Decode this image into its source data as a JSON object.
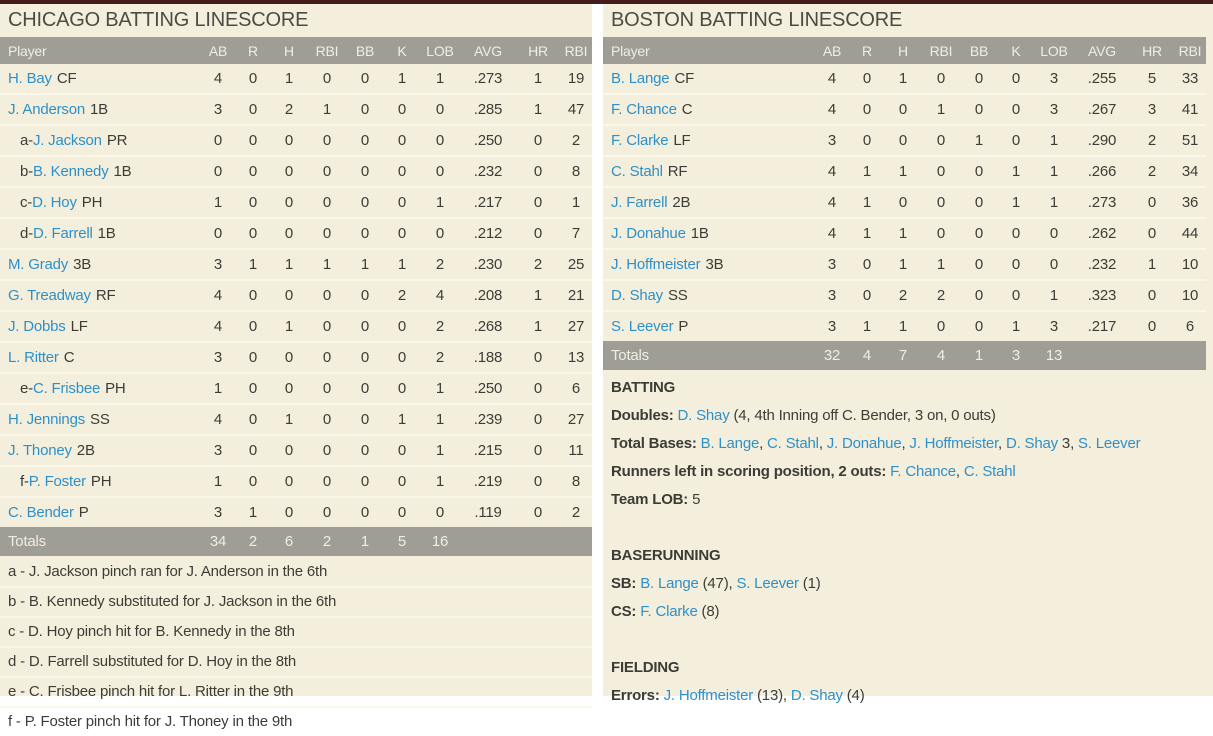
{
  "colors": {
    "top_bar": "#451c1a",
    "panel_background": "#f4efdc",
    "header_bar": "#9e9e96",
    "header_text": "#f1eee0",
    "body_text": "#3d3d37",
    "link_blue": "#2e90c8",
    "row_divider": "#faf7e9"
  },
  "columns": [
    "Player",
    "AB",
    "R",
    "H",
    "RBI",
    "BB",
    "K",
    "LOB",
    "AVG",
    "HR",
    "RBI"
  ],
  "chicago": {
    "title": "CHICAGO BATTING LINESCORE",
    "rows": [
      {
        "prefix": "",
        "name": "H. Bay",
        "pos": "CF",
        "stats": [
          "4",
          "0",
          "1",
          "0",
          "0",
          "1",
          "1",
          ".273",
          "1",
          "19"
        ]
      },
      {
        "prefix": "",
        "name": "J. Anderson",
        "pos": "1B",
        "stats": [
          "3",
          "0",
          "2",
          "1",
          "0",
          "0",
          "0",
          ".285",
          "1",
          "47"
        ]
      },
      {
        "prefix": "a-",
        "name": "J. Jackson",
        "pos": "PR",
        "stats": [
          "0",
          "0",
          "0",
          "0",
          "0",
          "0",
          "0",
          ".250",
          "0",
          "2"
        ]
      },
      {
        "prefix": "b-",
        "name": "B. Kennedy",
        "pos": "1B",
        "stats": [
          "0",
          "0",
          "0",
          "0",
          "0",
          "0",
          "0",
          ".232",
          "0",
          "8"
        ]
      },
      {
        "prefix": "c-",
        "name": "D. Hoy",
        "pos": "PH",
        "stats": [
          "1",
          "0",
          "0",
          "0",
          "0",
          "0",
          "1",
          ".217",
          "0",
          "1"
        ]
      },
      {
        "prefix": "d-",
        "name": "D. Farrell",
        "pos": "1B",
        "stats": [
          "0",
          "0",
          "0",
          "0",
          "0",
          "0",
          "0",
          ".212",
          "0",
          "7"
        ]
      },
      {
        "prefix": "",
        "name": "M. Grady",
        "pos": "3B",
        "stats": [
          "3",
          "1",
          "1",
          "1",
          "1",
          "1",
          "2",
          ".230",
          "2",
          "25"
        ]
      },
      {
        "prefix": "",
        "name": "G. Treadway",
        "pos": "RF",
        "stats": [
          "4",
          "0",
          "0",
          "0",
          "0",
          "2",
          "4",
          ".208",
          "1",
          "21"
        ]
      },
      {
        "prefix": "",
        "name": "J. Dobbs",
        "pos": "LF",
        "stats": [
          "4",
          "0",
          "1",
          "0",
          "0",
          "0",
          "2",
          ".268",
          "1",
          "27"
        ]
      },
      {
        "prefix": "",
        "name": "L. Ritter",
        "pos": "C",
        "stats": [
          "3",
          "0",
          "0",
          "0",
          "0",
          "0",
          "2",
          ".188",
          "0",
          "13"
        ]
      },
      {
        "prefix": "e-",
        "name": "C. Frisbee",
        "pos": "PH",
        "stats": [
          "1",
          "0",
          "0",
          "0",
          "0",
          "0",
          "1",
          ".250",
          "0",
          "6"
        ]
      },
      {
        "prefix": "",
        "name": "H. Jennings",
        "pos": "SS",
        "stats": [
          "4",
          "0",
          "1",
          "0",
          "0",
          "1",
          "1",
          ".239",
          "0",
          "27"
        ]
      },
      {
        "prefix": "",
        "name": "J. Thoney",
        "pos": "2B",
        "stats": [
          "3",
          "0",
          "0",
          "0",
          "0",
          "0",
          "1",
          ".215",
          "0",
          "11"
        ]
      },
      {
        "prefix": "f-",
        "name": "P. Foster",
        "pos": "PH",
        "stats": [
          "1",
          "0",
          "0",
          "0",
          "0",
          "0",
          "1",
          ".219",
          "0",
          "8"
        ]
      },
      {
        "prefix": "",
        "name": "C. Bender",
        "pos": "P",
        "stats": [
          "3",
          "1",
          "0",
          "0",
          "0",
          "0",
          "0",
          ".119",
          "0",
          "2"
        ]
      }
    ],
    "totals": {
      "label": "Totals",
      "stats": [
        "34",
        "2",
        "6",
        "2",
        "1",
        "5",
        "16",
        "",
        "",
        ""
      ]
    },
    "footnotes": [
      "a - J. Jackson pinch ran for J. Anderson in the 6th",
      "b - B. Kennedy substituted for J. Jackson in the 6th",
      "c - D. Hoy pinch hit for B. Kennedy in the 8th",
      "d - D. Farrell substituted for D. Hoy in the 8th",
      "e - C. Frisbee pinch hit for L. Ritter in the 9th",
      "f - P. Foster pinch hit for J. Thoney in the 9th"
    ]
  },
  "boston": {
    "title": "BOSTON BATTING LINESCORE",
    "rows": [
      {
        "prefix": "",
        "name": "B. Lange",
        "pos": "CF",
        "stats": [
          "4",
          "0",
          "1",
          "0",
          "0",
          "0",
          "3",
          ".255",
          "5",
          "33"
        ]
      },
      {
        "prefix": "",
        "name": "F. Chance",
        "pos": "C",
        "stats": [
          "4",
          "0",
          "0",
          "1",
          "0",
          "0",
          "3",
          ".267",
          "3",
          "41"
        ]
      },
      {
        "prefix": "",
        "name": "F. Clarke",
        "pos": "LF",
        "stats": [
          "3",
          "0",
          "0",
          "0",
          "1",
          "0",
          "1",
          ".290",
          "2",
          "51"
        ]
      },
      {
        "prefix": "",
        "name": "C. Stahl",
        "pos": "RF",
        "stats": [
          "4",
          "1",
          "1",
          "0",
          "0",
          "1",
          "1",
          ".266",
          "2",
          "34"
        ]
      },
      {
        "prefix": "",
        "name": "J. Farrell",
        "pos": "2B",
        "stats": [
          "4",
          "1",
          "0",
          "0",
          "0",
          "1",
          "1",
          ".273",
          "0",
          "36"
        ]
      },
      {
        "prefix": "",
        "name": "J. Donahue",
        "pos": "1B",
        "stats": [
          "4",
          "1",
          "1",
          "0",
          "0",
          "0",
          "0",
          ".262",
          "0",
          "44"
        ]
      },
      {
        "prefix": "",
        "name": "J. Hoffmeister",
        "pos": "3B",
        "stats": [
          "3",
          "0",
          "1",
          "1",
          "0",
          "0",
          "0",
          ".232",
          "1",
          "10"
        ]
      },
      {
        "prefix": "",
        "name": "D. Shay",
        "pos": "SS",
        "stats": [
          "3",
          "0",
          "2",
          "2",
          "0",
          "0",
          "1",
          ".323",
          "0",
          "10"
        ]
      },
      {
        "prefix": "",
        "name": "S. Leever",
        "pos": "P",
        "stats": [
          "3",
          "1",
          "1",
          "0",
          "0",
          "1",
          "3",
          ".217",
          "0",
          "6"
        ]
      }
    ],
    "totals": {
      "label": "Totals",
      "stats": [
        "32",
        "4",
        "7",
        "4",
        "1",
        "3",
        "13",
        "",
        "",
        ""
      ]
    },
    "notes": {
      "sections": [
        {
          "lines": [
            [
              {
                "b": 1,
                "v": "BATTING"
              }
            ],
            [
              {
                "b": 1,
                "v": "Doubles: "
              },
              {
                "l": 1,
                "v": "D. Shay"
              },
              {
                "v": " (4, 4th Inning off C. Bender, 3 on, 0 outs)"
              }
            ],
            [
              {
                "b": 1,
                "v": "Total Bases: "
              },
              {
                "l": 1,
                "v": "B. Lange"
              },
              {
                "v": ", "
              },
              {
                "l": 1,
                "v": "C. Stahl"
              },
              {
                "v": ", "
              },
              {
                "l": 1,
                "v": "J. Donahue"
              },
              {
                "v": ", "
              },
              {
                "l": 1,
                "v": "J. Hoffmeister"
              },
              {
                "v": ", "
              },
              {
                "l": 1,
                "v": "D. Shay"
              },
              {
                "v": " 3, "
              },
              {
                "l": 1,
                "v": "S. Leever"
              }
            ],
            [
              {
                "b": 1,
                "v": "Runners left in scoring position, 2 outs: "
              },
              {
                "l": 1,
                "v": "F. Chance"
              },
              {
                "v": ", "
              },
              {
                "l": 1,
                "v": "C. Stahl"
              }
            ],
            [
              {
                "b": 1,
                "v": "Team LOB: "
              },
              {
                "v": "5"
              }
            ]
          ]
        },
        {
          "lines": [
            [
              {
                "b": 1,
                "v": "BASERUNNING"
              }
            ],
            [
              {
                "b": 1,
                "v": "SB: "
              },
              {
                "l": 1,
                "v": "B. Lange"
              },
              {
                "v": " (47), "
              },
              {
                "l": 1,
                "v": "S. Leever"
              },
              {
                "v": " (1)"
              }
            ],
            [
              {
                "b": 1,
                "v": "CS: "
              },
              {
                "l": 1,
                "v": "F. Clarke"
              },
              {
                "v": " (8)"
              }
            ]
          ]
        },
        {
          "lines": [
            [
              {
                "b": 1,
                "v": "FIELDING"
              }
            ],
            [
              {
                "b": 1,
                "v": "Errors: "
              },
              {
                "l": 1,
                "v": "J. Hoffmeister"
              },
              {
                "v": " (13), "
              },
              {
                "l": 1,
                "v": "D. Shay"
              },
              {
                "v": " (4)"
              }
            ]
          ]
        }
      ]
    }
  }
}
